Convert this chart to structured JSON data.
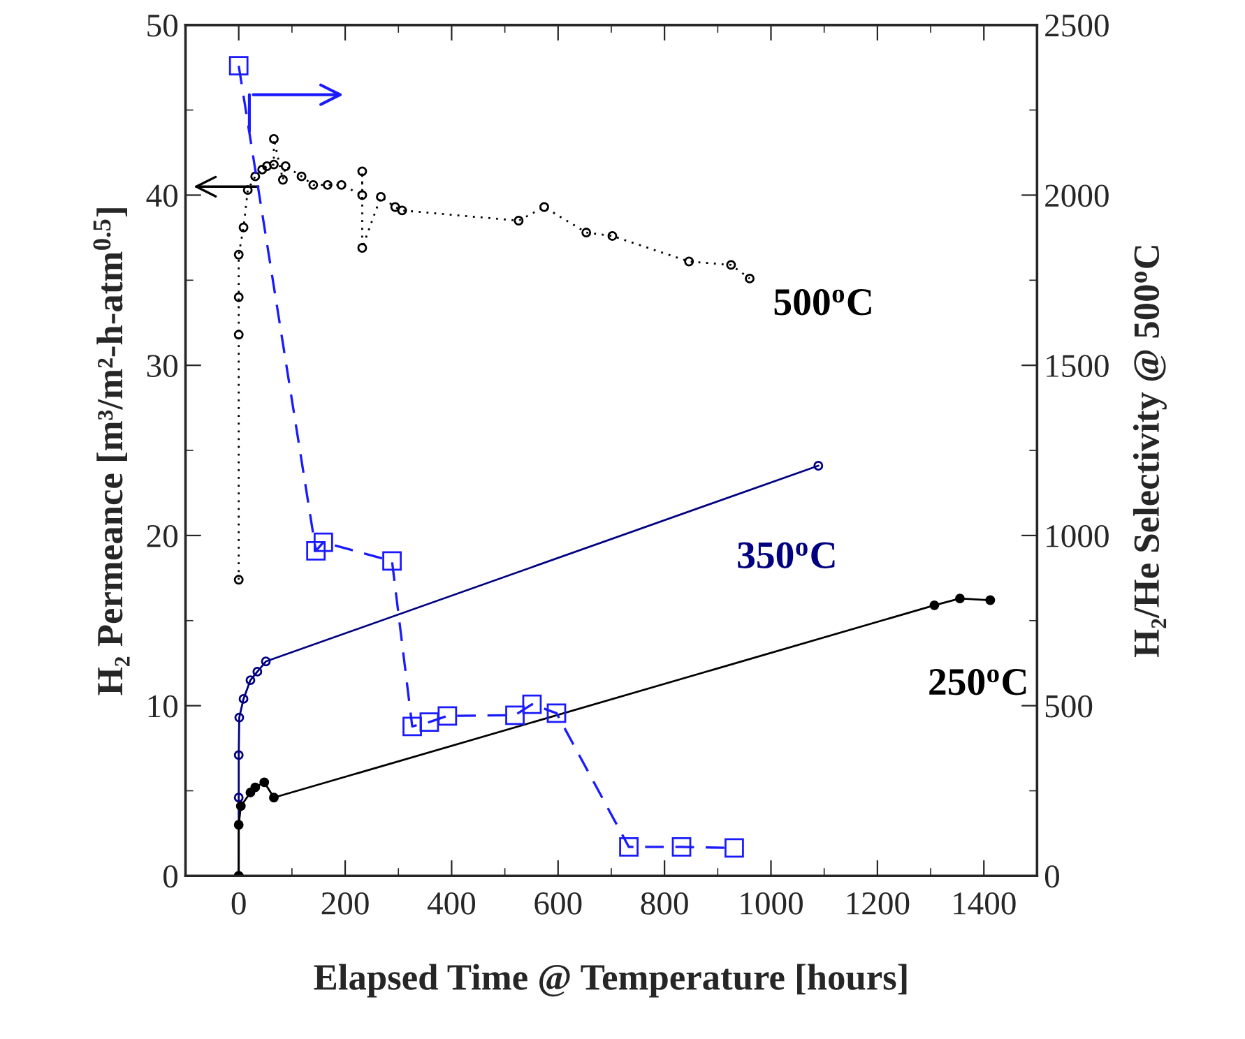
{
  "chart_data": {
    "type": "line",
    "xlabel": "Elapsed Time @ Temperature [hours]",
    "ylabel": "H₂ Permeance [m³/m²-h-atm$^{0.5}$]",
    "y2label": "H₂/He Selectivity @ 500$^{o}$C",
    "xlim": [
      -100,
      1500
    ],
    "xticks": [
      0,
      200,
      400,
      600,
      800,
      1000,
      1200,
      1400
    ],
    "ylim": [
      0,
      50
    ],
    "yticks": [
      0,
      10,
      20,
      30,
      40,
      50
    ],
    "y2lim": [
      0,
      2500
    ],
    "y2ticks": [
      0,
      500,
      1000,
      1500,
      2000,
      2500
    ],
    "grid": false,
    "legend": false,
    "series": [
      {
        "name": "500$^{o}$C",
        "color": "#000000",
        "marker": "circle",
        "line_style": "dotted",
        "x": [
          0,
          0,
          0,
          0,
          9,
          17,
          31,
          44,
          53,
          66,
          66,
          83,
          88,
          118,
          140,
          167,
          193,
          232,
          232,
          232,
          267,
          294,
          307,
          526,
          574,
          653,
          702,
          846,
          925,
          960
        ],
        "values": [
          17.4,
          31.8,
          34.0,
          36.5,
          38.1,
          40.3,
          41.1,
          41.5,
          41.7,
          41.8,
          43.3,
          40.9,
          41.7,
          41.1,
          40.6,
          40.6,
          40.6,
          40.0,
          41.4,
          36.9,
          39.9,
          39.3,
          39.1,
          38.5,
          39.3,
          37.8,
          37.6,
          36.1,
          35.9,
          35.1
        ]
      },
      {
        "name": "350$^{o}$C",
        "color": "#000080",
        "marker": "circle",
        "line_style": "solid",
        "x": [
          0,
          0,
          0,
          1,
          9,
          22,
          35,
          51,
          1089
        ],
        "values": [
          0,
          4.6,
          7.1,
          9.3,
          10.4,
          11.5,
          12.0,
          12.6,
          24.1
        ]
      },
      {
        "name": "250$^{o}$C",
        "color": "#000000",
        "marker": "circle",
        "line_style": "solid",
        "x": [
          0,
          0,
          4,
          22,
          31,
          48,
          66,
          1307,
          1355,
          1412
        ],
        "values": [
          0,
          3.0,
          4.1,
          4.9,
          5.2,
          5.5,
          4.6,
          15.9,
          16.3,
          16.2
        ]
      },
      {
        "axis": "y2",
        "color": "#1a1aff",
        "marker": "square",
        "line_style": "dashed",
        "x": [
          0,
          145,
          159,
          288,
          326,
          358,
          392,
          519,
          551,
          597,
          733,
          832,
          931
        ],
        "values": [
          2380,
          955,
          980,
          925,
          439,
          452,
          470,
          472,
          504,
          478,
          85,
          85,
          82
        ]
      }
    ]
  }
}
